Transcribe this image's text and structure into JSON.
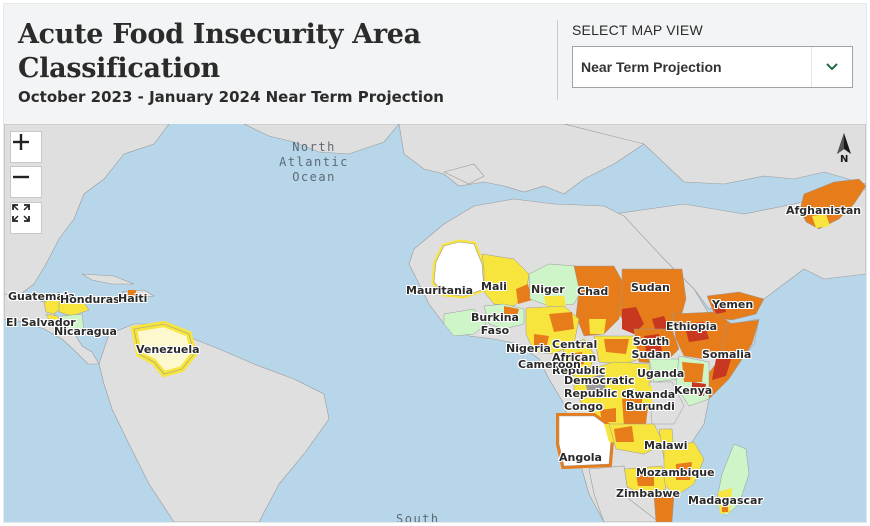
{
  "header": {
    "title": "Acute Food Insecurity Area Classification",
    "subtitle": "October 2023 - January 2024 Near Term Projection"
  },
  "map_view": {
    "label": "SELECT MAP VIEW",
    "selected": "Near Term Projection"
  },
  "map": {
    "oceans": {
      "north_atlantic": "North Atlantic Ocean",
      "south": "South"
    },
    "countries": {
      "guatemala": "Guatemala",
      "honduras": "Honduras",
      "haiti": "Haiti",
      "el_salvador": "El Salvador",
      "nicaragua": "Nicaragua",
      "venezuela": "Venezuela",
      "mauritania": "Mauritania",
      "mali": "Mali",
      "niger": "Niger",
      "chad": "Chad",
      "sudan": "Sudan",
      "yemen": "Yemen",
      "burkina_faso": "Burkina Faso",
      "nigeria": "Nigeria",
      "ethiopia": "Ethiopia",
      "car": "Central African Republic",
      "south_sudan": "South Sudan",
      "somalia": "Somalia",
      "cameroon": "Cameroon",
      "drc": "Democratic Republic of Congo",
      "uganda": "Uganda",
      "rwanda": "Rwanda",
      "burundi": "Burundi",
      "kenya": "Kenya",
      "angola": "Angola",
      "malawi": "Malawi",
      "mozambique": "Mozambique",
      "zimbabwe": "Zimbabwe",
      "madagascar": "Madagascar",
      "afghanistan": "Afghanistan"
    },
    "compass_letter": "N",
    "phase_colors": {
      "phase1_minimal": "#cdf5c8",
      "phase2_stressed": "#f7e43d",
      "phase3_crisis": "#e67d1a",
      "phase4_emergency": "#c8371f",
      "land_other": "#dfdfdf",
      "water": "#b7d6ea"
    }
  },
  "controls": {
    "zoom_in_icon": "plus-icon",
    "zoom_out_icon": "minus-icon",
    "fullscreen_icon": "fullscreen-icon"
  }
}
